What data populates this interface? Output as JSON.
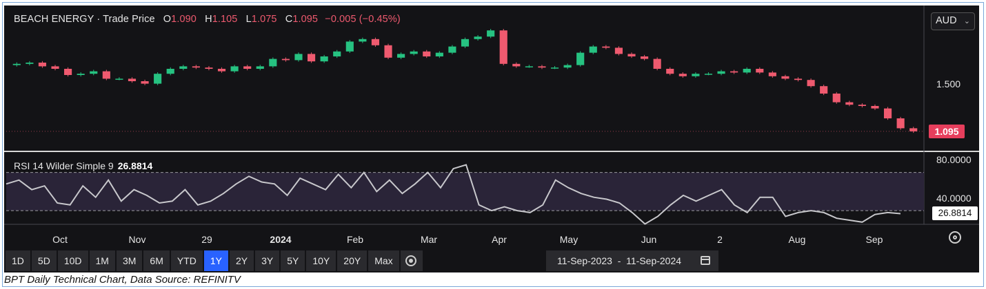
{
  "header": {
    "symbol": "BEACH ENERGY",
    "separator": "·",
    "series": "Trade Price",
    "o_key": "O",
    "o_val": "1.090",
    "h_key": "H",
    "h_val": "1.105",
    "l_key": "L",
    "l_val": "1.075",
    "c_key": "C",
    "c_val": "1.095",
    "change": "−0.005 (−0.45%)"
  },
  "currency": {
    "selected": "AUD"
  },
  "price_axis": {
    "ticks": [
      "1.500"
    ],
    "last_price_label": "1.095"
  },
  "rsi": {
    "label": "RSI 14 Wilder Simple 9",
    "value": "26.8814",
    "ticks": [
      "80.0000",
      "40.0000"
    ],
    "last_label": "26.8814"
  },
  "x_axis": {
    "labels": [
      "Oct",
      "Nov",
      "29",
      "2024",
      "Feb",
      "Mar",
      "Apr",
      "May",
      "Jun",
      "2",
      "Aug",
      "Sep"
    ]
  },
  "toolbar": {
    "ranges": [
      "1D",
      "5D",
      "10D",
      "1M",
      "3M",
      "6M",
      "YTD",
      "1Y",
      "2Y",
      "3Y",
      "5Y",
      "10Y",
      "20Y",
      "Max"
    ],
    "active": "1Y",
    "date_range": "11-Sep-2023  -  11-Sep-2024"
  },
  "caption": "BPT Daily Technical Chart, Data Source: REFINITV",
  "colors": {
    "up": "#26c281",
    "down": "#ef5a6f",
    "background": "#131316",
    "rsi_line": "#c8c8cc",
    "rsi_band": "#2a2438",
    "active_button": "#2962ff"
  },
  "chart_data": [
    {
      "type": "candlestick",
      "title": "BEACH ENERGY · Trade Price",
      "x_labels": [
        "Oct",
        "Nov",
        "29",
        "2024",
        "Feb",
        "Mar",
        "Apr",
        "May",
        "Jun",
        "2",
        "Aug",
        "Sep"
      ],
      "y_ticks": [
        1.5
      ],
      "last_close": 1.095,
      "ohlc_last": {
        "open": 1.09,
        "high": 1.105,
        "low": 1.075,
        "close": 1.095
      },
      "close_series": [
        1.64,
        1.65,
        1.62,
        1.6,
        1.55,
        1.56,
        1.58,
        1.52,
        1.52,
        1.5,
        1.48,
        1.56,
        1.6,
        1.62,
        1.61,
        1.6,
        1.58,
        1.62,
        1.6,
        1.62,
        1.68,
        1.67,
        1.72,
        1.66,
        1.7,
        1.74,
        1.82,
        1.84,
        1.79,
        1.69,
        1.72,
        1.74,
        1.7,
        1.73,
        1.78,
        1.84,
        1.86,
        1.91,
        1.64,
        1.62,
        1.62,
        1.61,
        1.61,
        1.63,
        1.73,
        1.78,
        1.77,
        1.72,
        1.7,
        1.68,
        1.6,
        1.56,
        1.54,
        1.56,
        1.56,
        1.58,
        1.57,
        1.6,
        1.57,
        1.54,
        1.52,
        1.51,
        1.46,
        1.4,
        1.33,
        1.31,
        1.3,
        1.28,
        1.2,
        1.12,
        1.095
      ]
    },
    {
      "type": "line",
      "title": "RSI 14 Wilder Simple 9",
      "y_ticks": [
        80,
        40
      ],
      "reference_lines": [
        70,
        30
      ],
      "last_value": 26.8814,
      "values": [
        58,
        62,
        52,
        56,
        38,
        36,
        56,
        44,
        62,
        40,
        52,
        46,
        38,
        40,
        52,
        36,
        40,
        48,
        58,
        66,
        60,
        58,
        46,
        64,
        58,
        52,
        68,
        54,
        70,
        50,
        62,
        48,
        58,
        70,
        54,
        74,
        78,
        36,
        30,
        34,
        30,
        28,
        36,
        62,
        54,
        48,
        44,
        42,
        38,
        28,
        16,
        24,
        36,
        46,
        40,
        46,
        52,
        36,
        28,
        44,
        44,
        24,
        28,
        30,
        28,
        22,
        20,
        18,
        26,
        28,
        26.88
      ]
    }
  ]
}
